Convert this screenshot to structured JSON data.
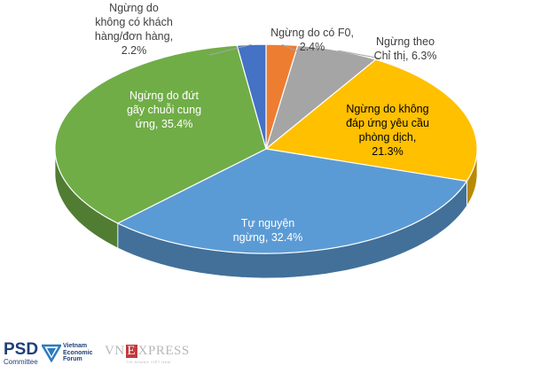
{
  "chart_data": {
    "type": "pie",
    "title": "",
    "slices": [
      {
        "label": "Ngừng do có F0, 2.4%",
        "lines": [
          "Ngừng do có F0,",
          "2.4%"
        ],
        "value": 2.4,
        "color": "#ed7d31"
      },
      {
        "label": "Ngừng theo Chỉ thị, 6.3%",
        "lines": [
          "Ngừng theo",
          "Chỉ thị, 6.3%"
        ],
        "value": 6.3,
        "color": "#a5a5a5"
      },
      {
        "label": "Ngừng do không đáp ứng yêu cầu phòng dịch, 21.3%",
        "lines": [
          "Ngừng do không",
          "đáp ứng yêu cầu",
          "phòng dịch,",
          "21.3%"
        ],
        "value": 21.3,
        "color": "#ffc000"
      },
      {
        "label": "Tự nguyện ngừng, 32.4%",
        "lines": [
          "Tự nguyện",
          "ngừng, 32.4%"
        ],
        "value": 32.4,
        "color": "#5b9bd5"
      },
      {
        "label": "Ngừng do đứt gãy chuỗi cung ứng, 35.4%",
        "lines": [
          "Ngừng do đứt",
          "gãy chuỗi cung",
          "ứng, 35.4%"
        ],
        "value": 35.4,
        "color": "#70ad47"
      },
      {
        "label": "Ngừng do không có khách hàng/đơn hàng, 2.2%",
        "lines": [
          "Ngừng do",
          "không có khách",
          "hàng/đơn hàng,",
          "2.2%"
        ],
        "value": 2.2,
        "color": "#4472c4"
      }
    ]
  },
  "footer": {
    "psd_main": "PSD",
    "psd_sub": "Committee",
    "vef_line1": "Vietnam",
    "vef_line2": "Economic",
    "vef_line3": "Forum",
    "vnexpress_left": "VN",
    "vnexpress_e": "E",
    "vnexpress_right": "XPRESS",
    "vnexpress_tag": "TIN NHANH VIỆT NAM"
  }
}
